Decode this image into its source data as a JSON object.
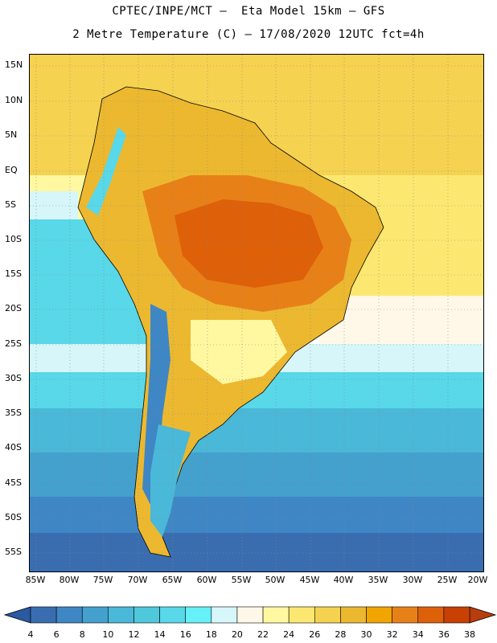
{
  "header": {
    "line1": "CPTEC/INPE/MCT –  Eta Model 15km – GFS",
    "line2": "2 Metre Temperature (C) – 17/08/2020 12UTC fct=4h"
  },
  "map": {
    "lat_labels": [
      "15N",
      "10N",
      "5N",
      "EQ",
      "5S",
      "10S",
      "15S",
      "20S",
      "25S",
      "30S",
      "35S",
      "40S",
      "45S",
      "50S",
      "55S"
    ],
    "lon_labels": [
      "85W",
      "80W",
      "75W",
      "70W",
      "65W",
      "60W",
      "55W",
      "50W",
      "45W",
      "40W",
      "35W",
      "30W",
      "25W",
      "20W"
    ]
  },
  "colorbar": {
    "labels": [
      "4",
      "6",
      "8",
      "10",
      "12",
      "14",
      "16",
      "18",
      "20",
      "22",
      "24",
      "26",
      "28",
      "30",
      "32",
      "34",
      "36",
      "38"
    ],
    "colors": [
      "#3a6db0",
      "#3f86c4",
      "#44a0cc",
      "#4ab8d8",
      "#50c8dc",
      "#58d8e8",
      "#66f0f8",
      "#d6f6fa",
      "#fff8e8",
      "#fff8a0",
      "#fce870",
      "#f5d250",
      "#ecb830",
      "#f0a500",
      "#e88018",
      "#de6008",
      "#c84004"
    ],
    "min_arrow_color": "#2a5aa0",
    "max_arrow_color": "#b83c0c"
  }
}
